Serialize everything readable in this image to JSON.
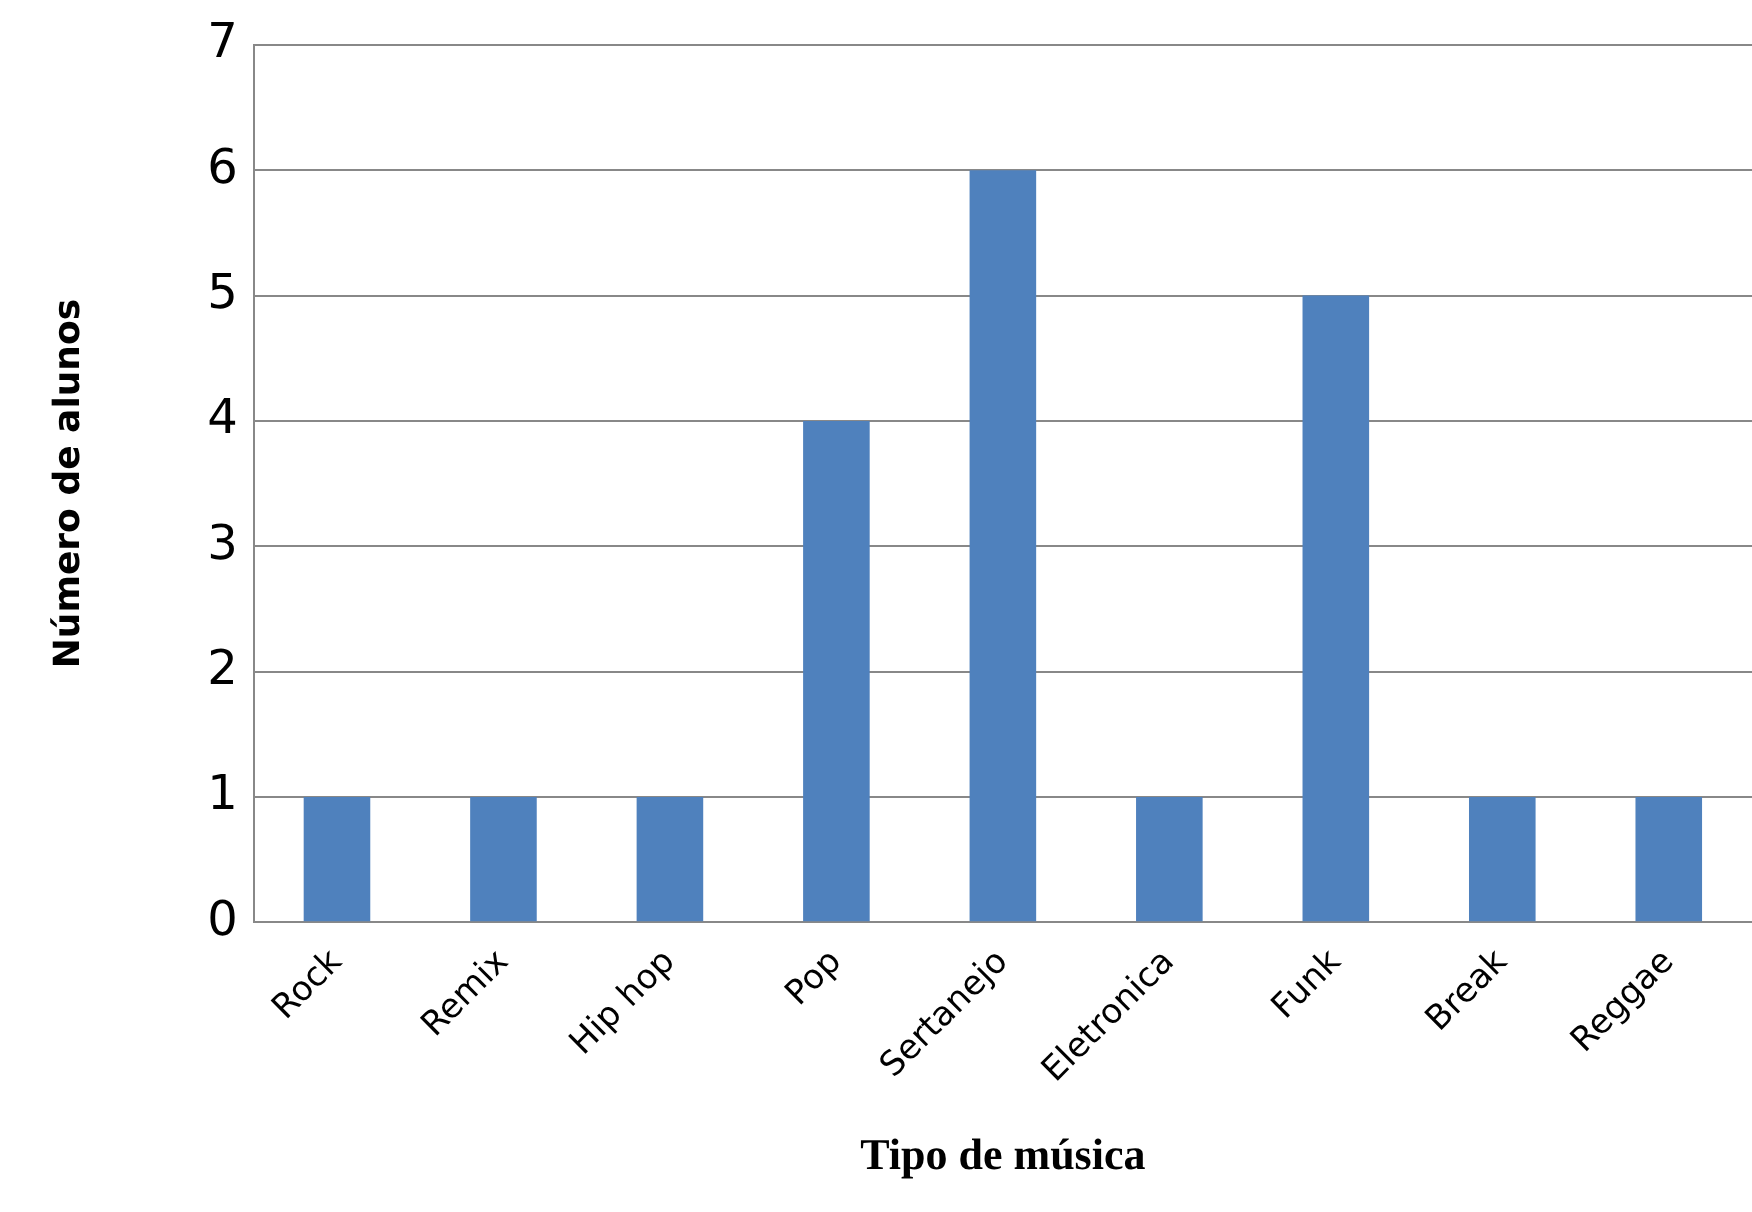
{
  "chart_data": {
    "type": "bar",
    "xlabel": "Tipo de música",
    "ylabel": "Número de alunos",
    "categories": [
      "Rock",
      "Remix",
      "Hip hop",
      "Pop",
      "Sertanejo",
      "Eletronica",
      "Funk",
      "Break",
      "Reggae"
    ],
    "values": [
      1,
      1,
      1,
      4,
      6,
      1,
      5,
      1,
      1
    ],
    "color": "#4f81bd",
    "ylim": [
      0,
      7
    ],
    "yticks": [
      0,
      1,
      2,
      3,
      4,
      5,
      6,
      7
    ],
    "grid": "y",
    "legend": false
  }
}
